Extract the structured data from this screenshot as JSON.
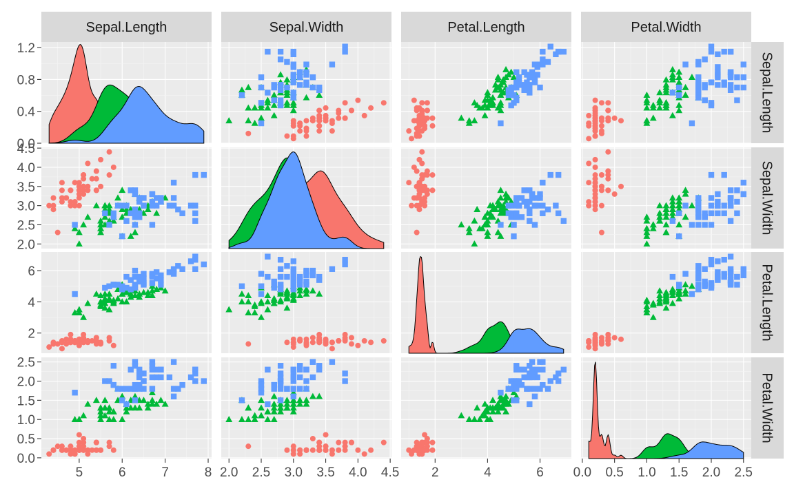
{
  "chart_data": {
    "type": "scatter-matrix",
    "title": "",
    "variables": [
      "Sepal.Length",
      "Sepal.Width",
      "Petal.Length",
      "Petal.Width"
    ],
    "ranges": {
      "Sepal.Length": [
        4.3,
        7.9
      ],
      "Sepal.Width": [
        2.0,
        4.4
      ],
      "Petal.Length": [
        1.0,
        6.9
      ],
      "Petal.Width": [
        0.1,
        2.5
      ]
    },
    "x_ticks": {
      "Sepal.Length": [
        5,
        6,
        7,
        8
      ],
      "Sepal.Width": [
        2.0,
        2.5,
        3.0,
        3.5,
        4.0,
        4.5
      ],
      "Petal.Length": [
        2,
        4,
        6
      ],
      "Petal.Width": [
        0.0,
        0.5,
        1.0,
        1.5,
        2.0,
        2.5
      ]
    },
    "x_tick_labels": {
      "Sepal.Length": [
        "5",
        "6",
        "7",
        "8"
      ],
      "Sepal.Width": [
        "2.0",
        "2.5",
        "3.0",
        "3.5",
        "4.0",
        "4.5"
      ],
      "Petal.Length": [
        "2",
        "4",
        "6"
      ],
      "Petal.Width": [
        "0.0",
        "0.5",
        "1.0",
        "1.5",
        "2.0",
        "2.5"
      ]
    },
    "y_ticks": {
      "density": [
        0.0,
        0.4,
        0.8,
        1.2
      ],
      "Sepal.Width": [
        2.0,
        2.5,
        3.0,
        3.5,
        4.0,
        4.5
      ],
      "Petal.Length": [
        2,
        4,
        6
      ],
      "Petal.Width": [
        0.0,
        0.5,
        1.0,
        1.5,
        2.0,
        2.5
      ]
    },
    "y_tick_labels": {
      "density": [
        "0.0",
        "0.4",
        "0.8",
        "1.2"
      ],
      "Sepal.Width": [
        "2.0",
        "2.5",
        "3.0",
        "3.5",
        "4.0",
        "4.5"
      ],
      "Petal.Length": [
        "2",
        "4",
        "6"
      ],
      "Petal.Width": [
        "0.0",
        "0.5",
        "1.0",
        "1.5",
        "2.0",
        "2.5"
      ]
    },
    "density_ylim": [
      0,
      1.27
    ],
    "grid": true,
    "legend": "none",
    "species_colors": [
      "#F8766D",
      "#00BA38",
      "#619CFF"
    ],
    "species_shapes": [
      "circle",
      "triangle",
      "square"
    ],
    "series": [
      {
        "sl": [
          5.1,
          4.9,
          4.7,
          4.6,
          5.0,
          5.4,
          4.6,
          5.0,
          4.4,
          4.9,
          5.4,
          4.8,
          4.8,
          4.3,
          5.8,
          5.7,
          5.4,
          5.1,
          5.7,
          5.1,
          5.4,
          5.1,
          4.6,
          5.1,
          4.8,
          5.0,
          5.0,
          5.2,
          5.2,
          4.7,
          4.8,
          5.4,
          5.2,
          5.5,
          4.9,
          5.0,
          5.5,
          4.9,
          4.4,
          5.1,
          5.0,
          4.5,
          4.4,
          5.0,
          5.1,
          4.8,
          5.1,
          4.6,
          5.3,
          5.0
        ],
        "sw": [
          3.5,
          3.0,
          3.2,
          3.1,
          3.6,
          3.9,
          3.4,
          3.4,
          2.9,
          3.1,
          3.7,
          3.4,
          3.0,
          3.0,
          4.0,
          4.4,
          3.9,
          3.5,
          3.8,
          3.8,
          3.4,
          3.7,
          3.6,
          3.3,
          3.4,
          3.0,
          3.4,
          3.5,
          3.4,
          3.2,
          3.1,
          3.4,
          4.1,
          4.2,
          3.1,
          3.2,
          3.5,
          3.6,
          3.0,
          3.4,
          3.5,
          2.3,
          3.2,
          3.5,
          3.8,
          3.0,
          3.8,
          3.2,
          3.7,
          3.3
        ],
        "pl": [
          1.4,
          1.4,
          1.3,
          1.5,
          1.4,
          1.7,
          1.4,
          1.5,
          1.4,
          1.5,
          1.5,
          1.6,
          1.4,
          1.1,
          1.2,
          1.5,
          1.3,
          1.4,
          1.7,
          1.5,
          1.7,
          1.5,
          1.0,
          1.7,
          1.9,
          1.6,
          1.6,
          1.5,
          1.4,
          1.6,
          1.6,
          1.5,
          1.5,
          1.4,
          1.5,
          1.2,
          1.3,
          1.4,
          1.3,
          1.5,
          1.3,
          1.3,
          1.3,
          1.6,
          1.9,
          1.4,
          1.6,
          1.4,
          1.5,
          1.4
        ],
        "pw": [
          0.2,
          0.2,
          0.2,
          0.2,
          0.2,
          0.4,
          0.3,
          0.2,
          0.2,
          0.1,
          0.2,
          0.2,
          0.1,
          0.1,
          0.2,
          0.4,
          0.4,
          0.3,
          0.3,
          0.3,
          0.2,
          0.4,
          0.2,
          0.5,
          0.2,
          0.2,
          0.4,
          0.2,
          0.2,
          0.2,
          0.2,
          0.4,
          0.1,
          0.2,
          0.2,
          0.2,
          0.2,
          0.1,
          0.2,
          0.2,
          0.3,
          0.3,
          0.2,
          0.6,
          0.4,
          0.3,
          0.2,
          0.2,
          0.2,
          0.2
        ]
      },
      {
        "sl": [
          7.0,
          6.4,
          6.9,
          5.5,
          6.5,
          5.7,
          6.3,
          4.9,
          6.6,
          5.2,
          5.0,
          5.9,
          6.0,
          6.1,
          5.6,
          6.7,
          5.6,
          5.8,
          6.2,
          5.6,
          5.9,
          6.1,
          6.3,
          6.1,
          6.4,
          6.6,
          6.8,
          6.7,
          6.0,
          5.7,
          5.5,
          5.5,
          5.8,
          6.0,
          5.4,
          6.0,
          6.7,
          6.3,
          5.6,
          5.5,
          5.5,
          6.1,
          5.8,
          5.0,
          5.6,
          5.7,
          5.7,
          6.2,
          5.1,
          5.7
        ],
        "sw": [
          3.2,
          3.2,
          3.1,
          2.3,
          2.8,
          2.8,
          3.3,
          2.4,
          2.9,
          2.7,
          2.0,
          3.0,
          2.2,
          2.9,
          2.9,
          3.1,
          3.0,
          2.7,
          2.2,
          2.5,
          3.2,
          2.8,
          2.5,
          2.8,
          2.9,
          3.0,
          2.8,
          3.0,
          2.9,
          2.6,
          2.4,
          2.4,
          2.7,
          2.7,
          3.0,
          3.4,
          3.1,
          2.3,
          3.0,
          2.5,
          2.6,
          3.0,
          2.6,
          2.3,
          2.7,
          3.0,
          2.9,
          2.9,
          2.5,
          2.8
        ],
        "pl": [
          4.7,
          4.5,
          4.9,
          4.0,
          4.6,
          4.5,
          4.7,
          3.3,
          4.6,
          3.9,
          3.5,
          4.2,
          4.0,
          4.7,
          3.6,
          4.4,
          4.5,
          4.1,
          4.5,
          3.9,
          4.8,
          4.0,
          4.9,
          4.7,
          4.3,
          4.4,
          4.8,
          5.0,
          4.5,
          3.5,
          3.8,
          3.7,
          3.9,
          5.1,
          4.5,
          4.5,
          4.7,
          4.4,
          4.1,
          4.0,
          4.4,
          4.6,
          4.0,
          3.3,
          4.2,
          4.2,
          4.2,
          4.3,
          3.0,
          4.1
        ],
        "pw": [
          1.4,
          1.5,
          1.5,
          1.3,
          1.5,
          1.3,
          1.6,
          1.0,
          1.3,
          1.4,
          1.0,
          1.5,
          1.0,
          1.4,
          1.3,
          1.4,
          1.5,
          1.0,
          1.5,
          1.1,
          1.8,
          1.3,
          1.5,
          1.2,
          1.3,
          1.4,
          1.4,
          1.7,
          1.5,
          1.0,
          1.1,
          1.0,
          1.2,
          1.6,
          1.5,
          1.6,
          1.5,
          1.3,
          1.3,
          1.3,
          1.2,
          1.4,
          1.2,
          1.0,
          1.3,
          1.2,
          1.3,
          1.3,
          1.1,
          1.3
        ]
      },
      {
        "sl": [
          6.3,
          5.8,
          7.1,
          6.3,
          6.5,
          7.6,
          4.9,
          7.3,
          6.7,
          7.2,
          6.5,
          6.4,
          6.8,
          5.7,
          5.8,
          6.4,
          6.5,
          7.7,
          7.7,
          6.0,
          6.9,
          5.6,
          7.7,
          6.3,
          6.7,
          7.2,
          6.2,
          6.1,
          6.4,
          7.2,
          7.4,
          7.9,
          6.4,
          6.3,
          6.1,
          7.7,
          6.3,
          6.4,
          6.0,
          6.9,
          6.7,
          6.9,
          5.8,
          6.8,
          6.7,
          6.7,
          6.3,
          6.5,
          6.2,
          5.9
        ],
        "sw": [
          3.3,
          2.7,
          3.0,
          2.9,
          3.0,
          3.0,
          2.5,
          2.9,
          2.5,
          3.6,
          3.2,
          2.7,
          3.0,
          2.5,
          2.8,
          3.2,
          3.0,
          3.8,
          2.6,
          2.2,
          3.2,
          2.8,
          2.8,
          2.7,
          3.3,
          3.2,
          2.8,
          3.0,
          2.8,
          3.0,
          2.8,
          3.8,
          2.8,
          2.8,
          2.6,
          3.0,
          3.4,
          3.1,
          3.0,
          3.1,
          3.1,
          3.1,
          2.7,
          3.2,
          3.3,
          3.0,
          2.5,
          3.0,
          3.4,
          3.0
        ],
        "pl": [
          6.0,
          5.1,
          5.9,
          5.6,
          5.8,
          6.6,
          4.5,
          6.3,
          5.8,
          6.1,
          5.1,
          5.3,
          5.5,
          5.0,
          5.1,
          5.3,
          5.5,
          6.7,
          6.9,
          5.0,
          5.7,
          4.9,
          6.7,
          4.9,
          5.7,
          6.0,
          4.8,
          4.9,
          5.6,
          5.8,
          6.1,
          6.4,
          5.6,
          5.1,
          5.6,
          6.1,
          5.6,
          5.5,
          4.8,
          5.4,
          5.6,
          5.1,
          5.1,
          5.9,
          5.7,
          5.2,
          5.0,
          5.2,
          5.4,
          5.1
        ],
        "pw": [
          2.5,
          1.9,
          2.1,
          1.8,
          2.2,
          2.1,
          1.7,
          1.8,
          1.8,
          2.5,
          2.0,
          1.9,
          2.1,
          2.0,
          2.4,
          2.3,
          1.8,
          2.2,
          2.3,
          1.5,
          2.3,
          2.0,
          2.0,
          1.8,
          2.1,
          1.8,
          1.8,
          1.8,
          2.1,
          1.6,
          1.9,
          2.0,
          2.2,
          1.5,
          1.4,
          2.3,
          2.4,
          1.8,
          1.8,
          2.1,
          2.4,
          2.3,
          1.9,
          2.3,
          2.5,
          2.3,
          1.9,
          2.0,
          2.3,
          1.8
        ]
      }
    ]
  }
}
